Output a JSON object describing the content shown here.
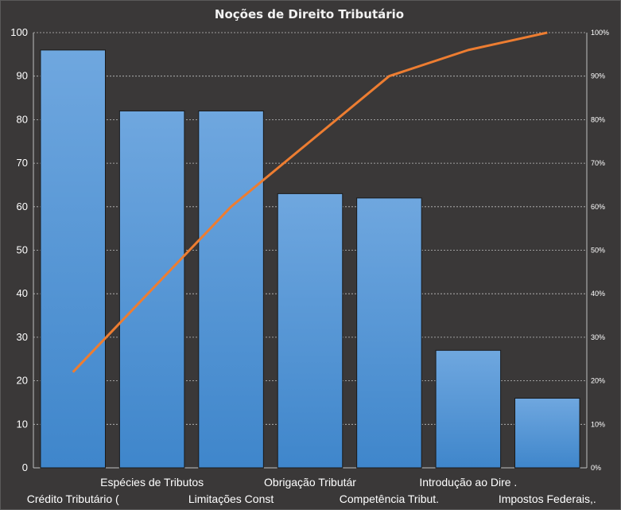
{
  "chart_data": {
    "type": "bar",
    "title": "Noções de Direito  Tributário",
    "categories": [
      "Crédito Tributário (",
      "Espécies de Tributos",
      "Limitações Const",
      "Obrigação Tributár",
      "Competência Tribut.",
      "Introdução  ao Dire .",
      "Impostos Federais,."
    ],
    "series": [
      {
        "type": "bar",
        "values": [
          96,
          82,
          82,
          63,
          62,
          27,
          16
        ]
      },
      {
        "type": "line",
        "axis": "right",
        "values": [
          0.22,
          0.41,
          0.6,
          0.75,
          0.9,
          0.96,
          1.0
        ]
      }
    ],
    "ylim": [
      0,
      100
    ],
    "y_ticks": [
      "0",
      "10",
      "20",
      "30",
      "40",
      "50",
      "60",
      "70",
      "80",
      "90",
      "100"
    ],
    "y2lim": [
      0,
      1
    ],
    "y2_ticks": [
      "0%",
      "10%",
      "20%",
      "30%",
      "40%",
      "50%",
      "60%",
      "70%",
      "80%",
      "90%",
      "100%"
    ],
    "grid": true,
    "legend": "none",
    "colors": {
      "bar_top": "#6fa7df",
      "bar_bottom": "#3f86cb",
      "line": "#ed7d31",
      "background": "#3a3838"
    }
  }
}
